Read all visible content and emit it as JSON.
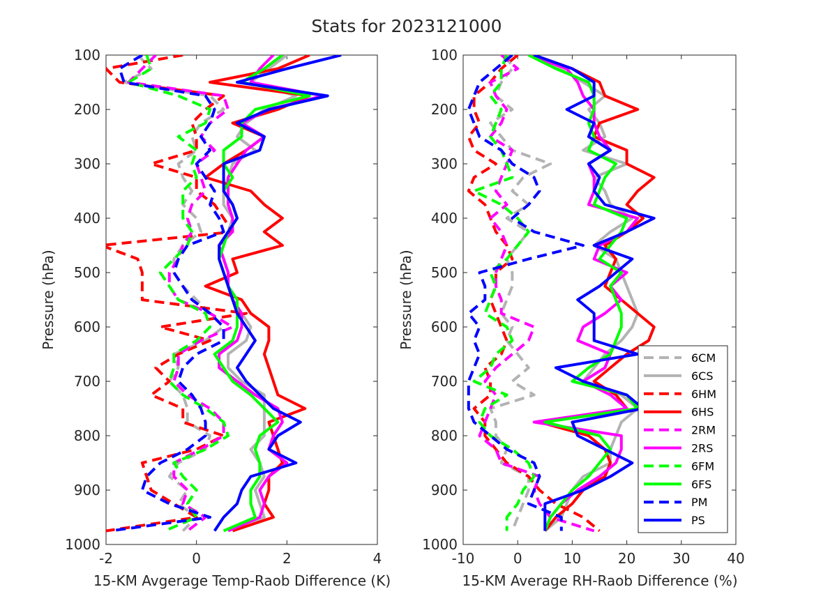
{
  "chart_data": {
    "type": "line",
    "title": "Stats for 2023121000",
    "legend": {
      "placement": "lower-right of right panel",
      "entries": [
        {
          "name": "6CM",
          "color": "#b3b3b3",
          "dash": true
        },
        {
          "name": "6CS",
          "color": "#b3b3b3",
          "dash": false
        },
        {
          "name": "6HM",
          "color": "#ff0000",
          "dash": true
        },
        {
          "name": "6HS",
          "color": "#ff0000",
          "dash": false
        },
        {
          "name": "2RM",
          "color": "#ff00ff",
          "dash": true
        },
        {
          "name": "2RS",
          "color": "#ff00ff",
          "dash": false
        },
        {
          "name": "6FM",
          "color": "#00ff00",
          "dash": true
        },
        {
          "name": "6FS",
          "color": "#00ff00",
          "dash": false
        },
        {
          "name": "PM",
          "color": "#0000ff",
          "dash": true
        },
        {
          "name": "PS",
          "color": "#0000ff",
          "dash": false
        }
      ]
    },
    "panels": [
      {
        "xlabel": "15-KM Avgerage Temp-Raob Difference (K)",
        "ylabel": "Pressure (hPa)",
        "xlim": [
          -2,
          4
        ],
        "ylim": [
          100,
          1000
        ],
        "y_reversed": true,
        "xticks": [
          -2,
          0,
          2,
          4
        ],
        "yticks": [
          100,
          200,
          300,
          400,
          500,
          600,
          700,
          800,
          900,
          1000
        ],
        "pressure": [
          100,
          125,
          150,
          175,
          200,
          225,
          250,
          275,
          300,
          325,
          350,
          375,
          400,
          425,
          450,
          475,
          500,
          525,
          550,
          575,
          600,
          625,
          650,
          675,
          700,
          725,
          750,
          775,
          800,
          825,
          850,
          875,
          900,
          925,
          950,
          975
        ],
        "series": [
          {
            "name": "6CM",
            "values": [
              -1.3,
              -1.0,
              -1.6,
              0.3,
              0.6,
              0.1,
              -0.1,
              0.0,
              -0.4,
              -0.3,
              -0.1,
              -0.3,
              0.0,
              0.1,
              -0.3,
              -0.5,
              -0.5,
              -0.3,
              0.0,
              0.3,
              0.6,
              0.2,
              -0.5,
              -0.4,
              -0.6,
              -0.3,
              -0.2,
              -0.2,
              0.3,
              0.2,
              -0.4,
              -0.6,
              -0.2,
              -0.4,
              0.0,
              -0.3
            ]
          },
          {
            "name": "6CS",
            "values": [
              2.0,
              1.6,
              1.2,
              2.2,
              1.5,
              1.1,
              0.9,
              1.3,
              0.8,
              0.7,
              0.6,
              0.6,
              0.8,
              0.7,
              0.5,
              0.6,
              0.7,
              0.7,
              0.8,
              1.0,
              1.2,
              1.1,
              0.7,
              0.7,
              1.0,
              1.5,
              1.5,
              1.5,
              1.5,
              1.2,
              1.4,
              1.5,
              1.3,
              1.4,
              1.5,
              0.8
            ]
          },
          {
            "name": "6HM",
            "values": [
              -0.3,
              -2.0,
              -1.7,
              0.6,
              0.2,
              -0.1,
              0.0,
              0.0,
              -1.0,
              0.0,
              0.0,
              0.4,
              0.6,
              0.8,
              -2.1,
              -1.3,
              -1.2,
              -1.2,
              -1.2,
              1.1,
              -0.8,
              0.3,
              -0.4,
              -0.9,
              -0.6,
              -1.0,
              -0.3,
              -0.3,
              0.6,
              0.0,
              -1.2,
              -1.1,
              -1.0,
              -0.5,
              0.0,
              -2.0
            ]
          },
          {
            "name": "6HS",
            "values": [
              2.5,
              1.8,
              0.3,
              2.5,
              1.8,
              0.8,
              1.5,
              1.1,
              0.6,
              0.2,
              1.2,
              1.5,
              1.9,
              1.5,
              1.9,
              0.8,
              0.9,
              0.2,
              1.0,
              1.2,
              1.6,
              1.6,
              1.5,
              1.6,
              1.7,
              1.8,
              2.4,
              1.6,
              1.7,
              1.8,
              1.9,
              1.6,
              1.6,
              1.5,
              1.7,
              0.8
            ]
          },
          {
            "name": "2RM",
            "values": [
              -0.9,
              -1.2,
              -1.5,
              0.6,
              0.7,
              0.3,
              0.1,
              0.4,
              0.0,
              0.1,
              0.2,
              -0.1,
              -0.2,
              -0.1,
              -0.3,
              -0.4,
              -0.6,
              -0.6,
              -0.4,
              0.3,
              0.8,
              0.1,
              -0.4,
              -0.4,
              -0.5,
              -0.2,
              0.3,
              0.6,
              0.6,
              0.1,
              -0.5,
              -0.5,
              -0.2,
              -0.3,
              0.2,
              -0.2
            ]
          },
          {
            "name": "2RS",
            "values": [
              1.7,
              1.4,
              1.2,
              2.8,
              1.6,
              1.0,
              1.5,
              1.1,
              0.9,
              0.7,
              0.7,
              0.7,
              0.8,
              0.8,
              0.5,
              0.6,
              0.7,
              0.7,
              0.8,
              1.0,
              1.0,
              0.9,
              0.5,
              0.5,
              0.9,
              1.3,
              1.8,
              1.9,
              1.7,
              1.6,
              2.0,
              1.6,
              1.4,
              1.5,
              1.4,
              0.7
            ]
          },
          {
            "name": "6FM",
            "values": [
              -1.1,
              -1.0,
              -1.5,
              -0.4,
              0.3,
              0.2,
              -0.4,
              0.0,
              -0.1,
              0.0,
              -0.3,
              -0.3,
              -0.3,
              -0.1,
              -0.2,
              -0.5,
              -0.8,
              -0.6,
              -0.4,
              0.2,
              0.3,
              0.0,
              -0.5,
              -0.5,
              -0.6,
              -0.3,
              0.2,
              0.6,
              0.7,
              0.2,
              -0.5,
              -0.3,
              0.0,
              -0.2,
              0.0,
              -0.7
            ]
          },
          {
            "name": "6FS",
            "values": [
              1.9,
              1.5,
              1.0,
              2.5,
              1.3,
              1.0,
              1.0,
              0.6,
              0.6,
              0.8,
              0.6,
              0.8,
              0.9,
              0.7,
              0.6,
              0.5,
              0.6,
              0.7,
              0.9,
              0.9,
              0.9,
              0.8,
              0.4,
              0.6,
              0.8,
              1.2,
              1.5,
              1.8,
              1.4,
              1.3,
              1.4,
              1.4,
              1.2,
              1.2,
              1.3,
              0.6
            ]
          },
          {
            "name": "PM",
            "values": [
              -1.2,
              -1.7,
              -1.6,
              0.2,
              0.4,
              0.3,
              0.1,
              0.3,
              0.0,
              0.2,
              0.4,
              0.3,
              0.5,
              0.6,
              -0.2,
              -0.4,
              -0.5,
              -0.3,
              -0.1,
              0.3,
              0.6,
              0.6,
              0.0,
              -0.3,
              -0.4,
              -0.1,
              0.1,
              0.2,
              0.2,
              -0.2,
              -0.8,
              -1.1,
              -1.2,
              -0.6,
              0.3,
              -1.9
            ]
          },
          {
            "name": "PS",
            "values": [
              3.2,
              2.0,
              0.9,
              2.9,
              1.6,
              0.9,
              1.5,
              1.4,
              0.6,
              0.6,
              0.6,
              0.8,
              0.9,
              0.7,
              0.5,
              0.5,
              0.6,
              0.7,
              0.8,
              0.9,
              1.1,
              1.3,
              1.1,
              0.9,
              1.1,
              1.4,
              1.7,
              2.3,
              1.8,
              1.6,
              2.2,
              1.2,
              1.0,
              0.9,
              0.6,
              0.4
            ]
          }
        ]
      },
      {
        "xlabel": "15-KM Average RH-Raob Difference (%)",
        "ylabel": "Pressure (hPa)",
        "xlim": [
          -10,
          40
        ],
        "ylim": [
          100,
          1000
        ],
        "y_reversed": true,
        "xticks": [
          -10,
          0,
          10,
          20,
          30,
          40
        ],
        "yticks": [
          100,
          200,
          300,
          400,
          500,
          600,
          700,
          800,
          900,
          1000
        ],
        "pressure": [
          100,
          125,
          150,
          175,
          200,
          225,
          250,
          275,
          300,
          325,
          350,
          375,
          400,
          425,
          450,
          475,
          500,
          525,
          550,
          575,
          600,
          625,
          650,
          675,
          700,
          725,
          750,
          775,
          800,
          825,
          850,
          875,
          900,
          925,
          950,
          975
        ],
        "series": [
          {
            "name": "6CM",
            "values": [
              -2,
              -1,
              -3,
              -4,
              -1,
              -5,
              -3,
              -1,
              6,
              1,
              -1,
              2,
              -2,
              2,
              0,
              -2,
              -1,
              -1,
              -2,
              -3,
              -1,
              -2,
              0,
              2,
              -1,
              3,
              -5,
              -4,
              -4,
              -2,
              -3,
              2,
              2,
              1,
              0,
              -1
            ]
          },
          {
            "name": "6CS",
            "values": [
              2,
              8,
              12,
              16,
              13,
              15,
              16,
              12,
              20,
              14,
              16,
              17,
              21,
              17,
              14,
              18,
              19,
              20,
              21,
              22,
              21,
              19,
              16,
              14,
              12,
              19,
              22,
              19,
              18,
              17,
              17,
              12,
              10,
              9,
              8,
              5
            ]
          },
          {
            "name": "6HM",
            "values": [
              0,
              -3,
              -5,
              -8,
              -8,
              -7,
              -9,
              -8,
              -4,
              -8,
              -9,
              -6,
              -5,
              -4,
              -2,
              -1,
              -4,
              -4,
              -5,
              -4,
              -3,
              -2,
              -3,
              -6,
              -5,
              -5,
              -8,
              -6,
              -6,
              -4,
              -2,
              2,
              4,
              7,
              12,
              15
            ]
          },
          {
            "name": "6HS",
            "values": [
              3,
              10,
              15,
              16,
              22,
              15,
              14,
              20,
              20,
              25,
              22,
              20,
              23,
              20,
              16,
              18,
              17,
              16,
              19,
              22,
              25,
              24,
              20,
              17,
              14,
              18,
              20,
              4,
              13,
              16,
              17,
              16,
              12,
              10,
              7,
              5
            ]
          },
          {
            "name": "2RM",
            "values": [
              -3,
              0,
              -5,
              -4,
              -2,
              -3,
              -5,
              -1,
              -2,
              -3,
              -4,
              -2,
              -5,
              -3,
              -2,
              -3,
              -4,
              -4,
              -3,
              -3,
              3,
              2,
              -1,
              -4,
              -6,
              -4,
              -5,
              -6,
              -7,
              -4,
              -3,
              4,
              3,
              4,
              6,
              14
            ]
          },
          {
            "name": "2RS",
            "values": [
              2,
              9,
              11,
              12,
              14,
              14,
              15,
              17,
              13,
              14,
              14,
              13,
              22,
              20,
              15,
              14,
              20,
              17,
              19,
              16,
              12,
              11,
              17,
              16,
              12,
              17,
              20,
              3,
              19,
              19,
              18,
              15,
              11,
              8,
              6,
              5
            ]
          },
          {
            "name": "6FM",
            "values": [
              -2,
              -3,
              -3,
              -5,
              -3,
              -4,
              -5,
              -3,
              -2,
              -1,
              -8,
              -3,
              0,
              2,
              0,
              -2,
              -5,
              -4,
              -5,
              -6,
              -2,
              -1,
              -4,
              -5,
              -8,
              -2,
              -6,
              -7,
              -5,
              -1,
              2,
              3,
              1,
              0,
              -2,
              -2
            ]
          },
          {
            "name": "6FS",
            "values": [
              2,
              7,
              13,
              14,
              14,
              13,
              14,
              13,
              18,
              16,
              15,
              14,
              20,
              19,
              17,
              15,
              19,
              17,
              18,
              19,
              19,
              18,
              17,
              13,
              10,
              20,
              22,
              5,
              15,
              17,
              15,
              13,
              10,
              8,
              6,
              5
            ]
          },
          {
            "name": "PM",
            "values": [
              -1,
              -4,
              -7,
              -8,
              -9,
              -8,
              -7,
              -3,
              -1,
              3,
              4,
              2,
              -1,
              3,
              12,
              2,
              -7,
              -6,
              -6,
              -9,
              -7,
              -8,
              -7,
              -8,
              -9,
              -9,
              -9,
              -8,
              -5,
              -2,
              3,
              4,
              3,
              2,
              8,
              8
            ]
          },
          {
            "name": "PS",
            "values": [
              3,
              10,
              14,
              14,
              9,
              14,
              13,
              17,
              13,
              15,
              14,
              16,
              25,
              20,
              14,
              21,
              18,
              15,
              11,
              14,
              14,
              14,
              22,
              7,
              12,
              20,
              23,
              10,
              11,
              16,
              21,
              17,
              12,
              5,
              5,
              5
            ]
          }
        ]
      }
    ]
  }
}
